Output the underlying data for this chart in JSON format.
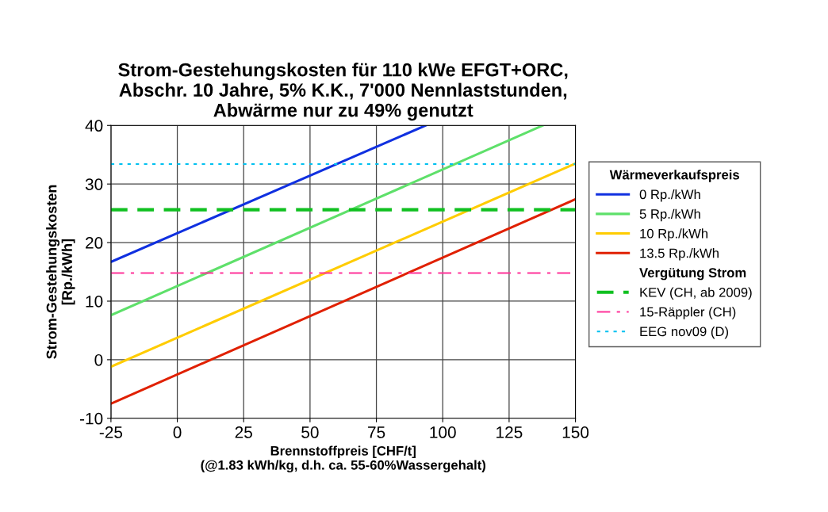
{
  "chart_data": {
    "type": "line",
    "title": "Strom-Gestehungskosten für 110 kWe EFGT+ORC,\nAbschr. 10 Jahre, 5% K.K., 7'000 Nennlaststunden,\nAbwärme nur zu 49% genutzt",
    "xlabel": "Brennstoffpreis [CHF/t]\n(@1.83 kWh/kg, d.h. ca. 55-60%Wassergehalt)",
    "ylabel": "Strom-Gestehungskosten\n[Rp./kWh]",
    "legend_title": "Wärmeverkaufspreis",
    "annotations": [
      "Vergütung Strom"
    ],
    "series": [
      {
        "name": "0 Rp./kWh",
        "color": "#1030e0",
        "x": [
          -25,
          93.6
        ],
        "values": [
          16.7,
          40
        ]
      },
      {
        "name": "5 Rp./kWh",
        "color": "#5ee06a",
        "x": [
          -25,
          137.7
        ],
        "values": [
          7.6,
          40
        ]
      },
      {
        "name": "10 Rp./kWh",
        "color": "#ffcc00",
        "x": [
          -25,
          150
        ],
        "values": [
          -1.2,
          33.5
        ]
      },
      {
        "name": "13.5 Rp./kWh",
        "color": "#e02000",
        "x": [
          -25,
          150
        ],
        "values": [
          -7.5,
          27.4
        ]
      }
    ],
    "ref_lines": [
      {
        "axis": "y",
        "value": 25.6,
        "label": "KEV (CH, ab 2009)",
        "color": "#10c020",
        "line_style": "dashed"
      },
      {
        "axis": "y",
        "value": 14.8,
        "label": "15-Räppler (CH)",
        "color": "#ff3399",
        "line_style": "dashdot"
      },
      {
        "axis": "y",
        "value": 33.4,
        "label": "EEG nov09 (D)",
        "color": "#00c0f0",
        "line_style": "dotted"
      }
    ],
    "xlim": [
      -25,
      150
    ],
    "xticks": [
      -25,
      0,
      25,
      50,
      75,
      100,
      125,
      150
    ],
    "ylim": [
      -10,
      40
    ],
    "yticks": [
      -10,
      0,
      10,
      20,
      30,
      40
    ],
    "grid": true,
    "legend": "right",
    "marker": "none",
    "line_style": "solid"
  }
}
